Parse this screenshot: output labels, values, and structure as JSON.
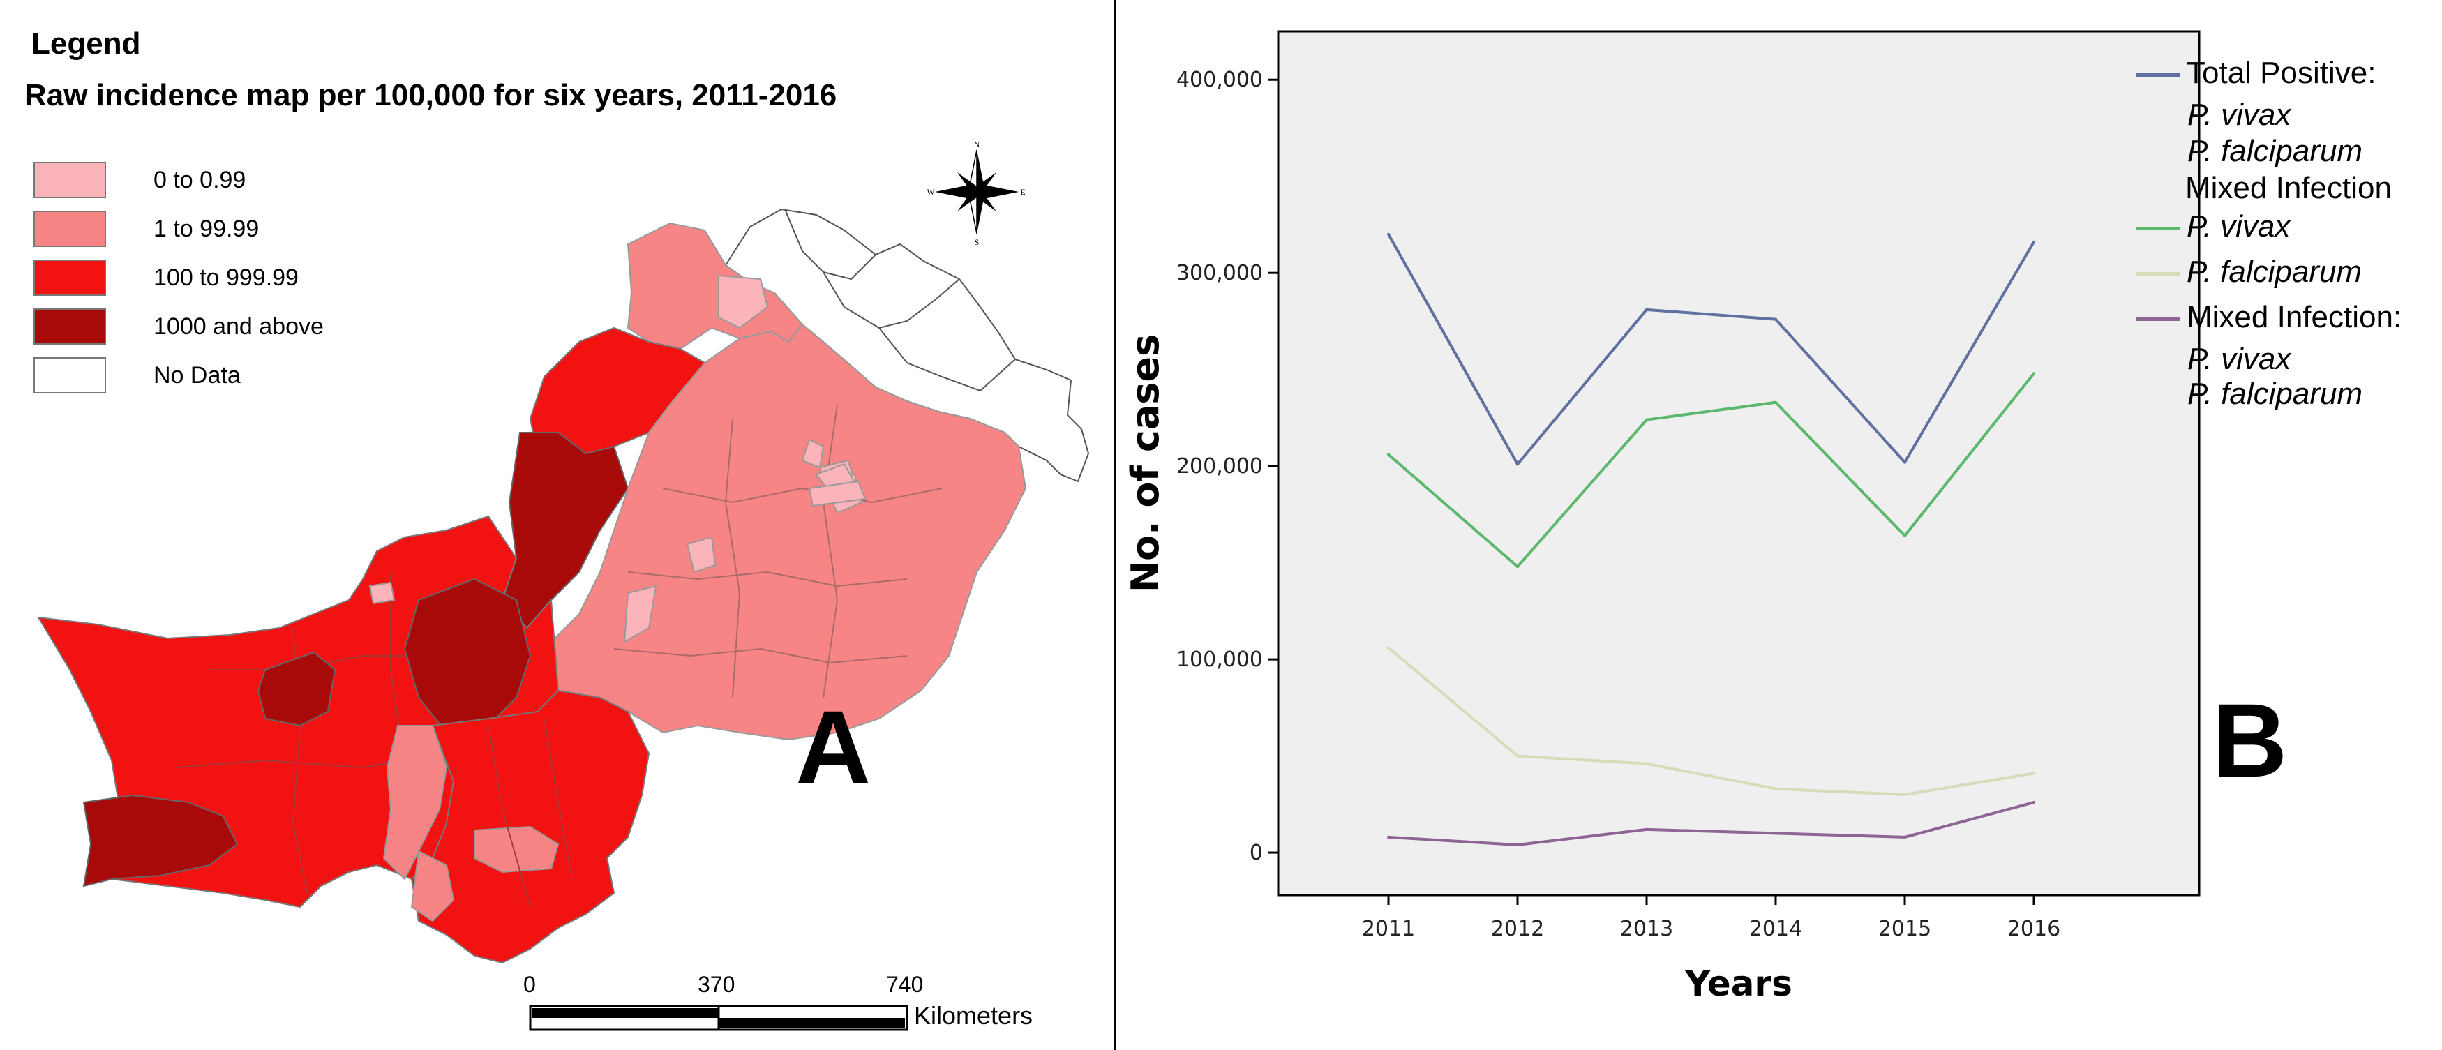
{
  "panel_a": {
    "letter": "A",
    "legend_heading": "Legend",
    "title": "Raw incidence map per 100,000 for six years, 2011-2016",
    "legend_items": [
      {
        "label": "0 to 0.99",
        "color": "#fbb4b9"
      },
      {
        "label": "1 to 99.99",
        "color": "#f88585"
      },
      {
        "label": "100 to 999.99",
        "color": "#f21212"
      },
      {
        "label": "1000 and above",
        "color": "#a80a0a"
      },
      {
        "label": "No Data",
        "color": "#ffffff"
      }
    ],
    "compass": {
      "n": "N",
      "s": "S",
      "e": "E",
      "w": "W"
    },
    "scale_bar": {
      "ticks": [
        "0",
        "370",
        "740"
      ],
      "unit": "Kilometers"
    }
  },
  "panel_b": {
    "letter": "B",
    "legend_lines": [
      {
        "text": "Total Positive:",
        "italic": false,
        "swatch": "#6070a0"
      },
      {
        "text": "P. vivax",
        "italic": true,
        "swatch": ""
      },
      {
        "text": "P. falciparum",
        "italic": true,
        "swatch": ""
      },
      {
        "text": "Mixed Infection",
        "italic": false,
        "swatch": ""
      },
      {
        "text": "P. vivax",
        "italic": true,
        "swatch": "#5cb86c"
      },
      {
        "text": "P. falciparum",
        "italic": true,
        "swatch": "#d8dbb8"
      },
      {
        "text": "Mixed Infection:",
        "italic": false,
        "swatch": "#8e6494"
      },
      {
        "text": "P. vivax",
        "italic": true,
        "swatch": ""
      },
      {
        "text": "P. falciparum",
        "italic": true,
        "swatch": ""
      }
    ]
  },
  "chart_data": {
    "type": "line",
    "title": "",
    "xlabel": "Years",
    "ylabel": "No. of cases",
    "categories": [
      "2011",
      "2012",
      "2013",
      "2014",
      "2015",
      "2016"
    ],
    "y_ticks": [
      "0",
      "100,000",
      "200,000",
      "300,000",
      "400,000"
    ],
    "y_tick_values": [
      0,
      100000,
      200000,
      300000,
      400000
    ],
    "ylim": [
      -22000,
      425000
    ],
    "plot_background": "#efefef",
    "series": [
      {
        "name": "Total Positive: P. vivax P. falciparum Mixed Infection",
        "color": "#6070a0",
        "values": [
          320000,
          201000,
          281000,
          276000,
          202000,
          316000
        ]
      },
      {
        "name": "P. vivax",
        "color": "#5cb86c",
        "values": [
          206000,
          148000,
          224000,
          233000,
          164000,
          248000
        ]
      },
      {
        "name": "P. falciparum",
        "color": "#d8dbb8",
        "values": [
          106000,
          50000,
          46000,
          33000,
          30000,
          41000
        ]
      },
      {
        "name": "Mixed Infection: P. vivax P. falciparum",
        "color": "#8e6494",
        "values": [
          8000,
          4000,
          12000,
          10000,
          8000,
          26000
        ]
      }
    ]
  }
}
